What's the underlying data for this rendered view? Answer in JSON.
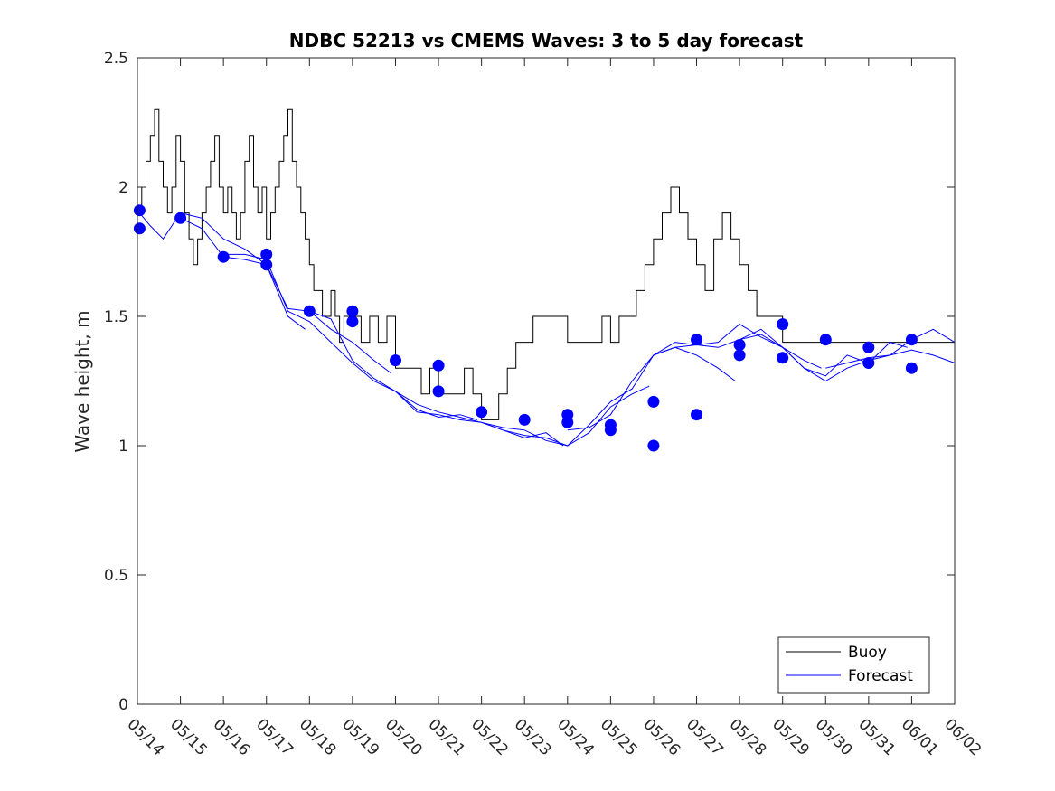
{
  "chart_data": {
    "type": "line",
    "title": "NDBC 52213 vs CMEMS Waves: 3 to 5 day forecast",
    "xlabel": "",
    "ylabel": "Wave height, m",
    "xlim": [
      0,
      19
    ],
    "ylim": [
      0,
      2.5
    ],
    "yticks": [
      "0",
      "0.5",
      "1",
      "1.5",
      "2",
      "2.5"
    ],
    "xticks": [
      "05/14",
      "05/15",
      "05/16",
      "05/17",
      "05/18",
      "05/19",
      "05/20",
      "05/21",
      "05/22",
      "05/23",
      "05/24",
      "05/25",
      "05/26",
      "05/27",
      "05/28",
      "05/29",
      "05/30",
      "05/31",
      "06/01",
      "06/02"
    ],
    "grid": false,
    "legend_position": "bottom-right",
    "series": [
      {
        "name": "Buoy",
        "color": "#000000",
        "x": [
          0.0,
          0.1,
          0.2,
          0.3,
          0.4,
          0.5,
          0.6,
          0.7,
          0.8,
          0.9,
          1.0,
          1.1,
          1.2,
          1.3,
          1.4,
          1.5,
          1.6,
          1.7,
          1.8,
          1.9,
          2.0,
          2.1,
          2.2,
          2.3,
          2.4,
          2.5,
          2.6,
          2.7,
          2.8,
          2.9,
          3.0,
          3.1,
          3.2,
          3.3,
          3.4,
          3.5,
          3.6,
          3.7,
          3.8,
          3.9,
          4.0,
          4.1,
          4.2,
          4.3,
          4.4,
          4.5,
          4.6,
          4.7,
          4.8,
          4.9,
          5.0,
          5.2,
          5.4,
          5.6,
          5.8,
          6.0,
          6.2,
          6.4,
          6.6,
          6.8,
          7.0,
          7.2,
          7.4,
          7.6,
          7.8,
          8.0,
          8.2,
          8.4,
          8.6,
          8.8,
          9.0,
          9.2,
          9.4,
          9.6,
          9.8,
          10.0,
          10.2,
          10.4,
          10.6,
          10.8,
          11.0,
          11.2,
          11.4,
          11.6,
          11.8,
          12.0,
          12.2,
          12.4,
          12.6,
          12.8,
          13.0,
          13.2,
          13.4,
          13.6,
          13.8,
          14.0,
          14.2,
          14.4,
          14.6,
          14.8,
          15.0,
          15.2,
          15.4,
          15.6,
          15.8,
          16.0,
          16.2,
          16.4,
          16.6,
          16.8,
          17.0,
          17.2,
          17.4,
          17.6,
          17.8,
          18.0,
          18.2,
          18.4,
          18.6,
          18.8,
          19.0
        ],
        "values": [
          1.9,
          2.0,
          2.1,
          2.2,
          2.3,
          2.1,
          2.0,
          1.9,
          2.0,
          2.2,
          2.1,
          1.9,
          1.8,
          1.7,
          1.8,
          1.9,
          2.0,
          2.1,
          2.2,
          2.0,
          1.9,
          2.0,
          1.9,
          1.8,
          1.9,
          2.1,
          2.2,
          2.0,
          1.9,
          2.0,
          1.8,
          1.9,
          2.0,
          2.1,
          2.2,
          2.3,
          2.1,
          2.0,
          1.9,
          1.8,
          1.7,
          1.6,
          1.6,
          1.5,
          1.5,
          1.6,
          1.5,
          1.4,
          1.5,
          1.5,
          1.5,
          1.4,
          1.5,
          1.4,
          1.5,
          1.3,
          1.3,
          1.3,
          1.2,
          1.3,
          1.2,
          1.2,
          1.2,
          1.3,
          1.2,
          1.1,
          1.1,
          1.2,
          1.3,
          1.4,
          1.4,
          1.5,
          1.5,
          1.5,
          1.5,
          1.4,
          1.4,
          1.4,
          1.4,
          1.5,
          1.4,
          1.5,
          1.5,
          1.6,
          1.7,
          1.8,
          1.9,
          2.0,
          1.9,
          1.8,
          1.7,
          1.6,
          1.8,
          1.9,
          1.8,
          1.7,
          1.6,
          1.5,
          1.5,
          1.5,
          1.4,
          1.4,
          1.4,
          1.4,
          1.4,
          1.4,
          1.4,
          1.4,
          1.4,
          1.4,
          1.4,
          1.4,
          1.4,
          1.4,
          1.4,
          1.4,
          1.4,
          1.4,
          1.4,
          1.4,
          1.4
        ]
      },
      {
        "name": "Forecast",
        "color": "#0000ff",
        "runs": [
          {
            "x": [
              0.0,
              0.3,
              0.6,
              1.0,
              1.5,
              2.0,
              2.5,
              3.0,
              3.5,
              3.9
            ],
            "values": [
              1.91,
              1.85,
              1.8,
              1.9,
              1.88,
              1.8,
              1.76,
              1.7,
              1.5,
              1.45
            ]
          },
          {
            "x": [
              1.0,
              1.5,
              2.0,
              2.5,
              3.0,
              3.5,
              4.0,
              4.5,
              5.0,
              5.5,
              5.9
            ],
            "values": [
              1.88,
              1.84,
              1.73,
              1.72,
              1.7,
              1.53,
              1.52,
              1.45,
              1.4,
              1.33,
              1.28
            ]
          },
          {
            "x": [
              2.0,
              2.5,
              3.0,
              3.5,
              4.0,
              4.5,
              5.0,
              5.5,
              6.0,
              6.5,
              7.0,
              7.5,
              7.9
            ],
            "values": [
              1.74,
              1.74,
              1.72,
              1.52,
              1.48,
              1.4,
              1.32,
              1.25,
              1.21,
              1.14,
              1.11,
              1.12,
              1.1
            ]
          },
          {
            "x": [
              4.0,
              4.5,
              5.0,
              5.5,
              6.0,
              6.5,
              7.0,
              7.5,
              8.0,
              8.5,
              9.0,
              9.5,
              9.9
            ],
            "values": [
              1.52,
              1.49,
              1.33,
              1.26,
              1.21,
              1.13,
              1.12,
              1.1,
              1.09,
              1.06,
              1.03,
              1.05,
              1.0
            ]
          },
          {
            "x": [
              6.0,
              6.5,
              7.0,
              7.5,
              8.0,
              8.5,
              9.0,
              9.5,
              10.0,
              10.5,
              11.0,
              11.5,
              11.9
            ],
            "values": [
              1.21,
              1.16,
              1.13,
              1.11,
              1.09,
              1.07,
              1.06,
              1.02,
              1.0,
              1.05,
              1.15,
              1.2,
              1.23
            ]
          },
          {
            "x": [
              8.0,
              8.5,
              9.0,
              9.5,
              10.0,
              10.5,
              11.0,
              11.5,
              12.0,
              12.5,
              13.0,
              13.5,
              13.9
            ],
            "values": [
              1.09,
              1.06,
              1.04,
              1.03,
              1.0,
              1.08,
              1.17,
              1.22,
              1.35,
              1.38,
              1.35,
              1.3,
              1.25
            ]
          },
          {
            "x": [
              10.0,
              10.5,
              11.0,
              11.5,
              12.0,
              12.5,
              13.0,
              13.5,
              14.0,
              14.5,
              15.0,
              15.5,
              15.9
            ],
            "values": [
              1.06,
              1.07,
              1.12,
              1.25,
              1.35,
              1.4,
              1.39,
              1.38,
              1.41,
              1.45,
              1.38,
              1.33,
              1.3
            ]
          },
          {
            "x": [
              12.0,
              12.5,
              13.0,
              13.5,
              14.0,
              14.5,
              15.0,
              15.5,
              16.0,
              16.5,
              17.0,
              17.5,
              17.9
            ],
            "values": [
              1.35,
              1.38,
              1.39,
              1.4,
              1.47,
              1.42,
              1.38,
              1.3,
              1.27,
              1.35,
              1.32,
              1.4,
              1.38
            ]
          },
          {
            "x": [
              14.0,
              14.5,
              15.0,
              15.5,
              16.0,
              16.5,
              17.0,
              17.5,
              18.0,
              18.5,
              19.0
            ],
            "values": [
              1.41,
              1.43,
              1.38,
              1.3,
              1.25,
              1.3,
              1.33,
              1.35,
              1.41,
              1.45,
              1.4
            ]
          },
          {
            "x": [
              16.0,
              16.5,
              17.0,
              17.5,
              18.0,
              18.5,
              19.0
            ],
            "values": [
              1.3,
              1.32,
              1.34,
              1.35,
              1.37,
              1.35,
              1.32
            ]
          }
        ],
        "markers": {
          "x": [
            0.05,
            0.05,
            1.0,
            2.0,
            3.0,
            3.0,
            4.0,
            5.0,
            5.0,
            6.0,
            7.0,
            7.0,
            8.0,
            9.0,
            10.0,
            10.0,
            11.0,
            11.0,
            12.0,
            12.0,
            13.0,
            13.0,
            14.0,
            14.0,
            15.0,
            15.0,
            16.0,
            17.0,
            17.0,
            18.0,
            18.0
          ],
          "values": [
            1.91,
            1.84,
            1.88,
            1.73,
            1.74,
            1.7,
            1.52,
            1.52,
            1.48,
            1.33,
            1.31,
            1.21,
            1.13,
            1.1,
            1.12,
            1.09,
            1.08,
            1.06,
            1.0,
            1.17,
            1.12,
            1.41,
            1.35,
            1.39,
            1.34,
            1.47,
            1.41,
            1.38,
            1.32,
            1.3,
            1.41
          ]
        }
      }
    ]
  }
}
